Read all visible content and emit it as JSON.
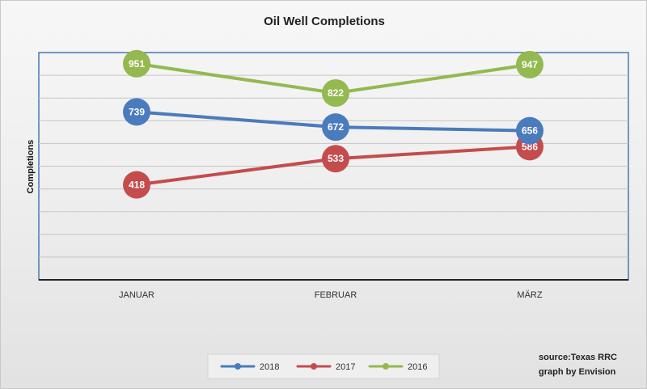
{
  "chart_data": {
    "type": "line",
    "title": "Oil Well Completions",
    "xlabel": "",
    "ylabel": "Completions",
    "categories": [
      "JANUAR",
      "FEBRUAR",
      "MÄRZ"
    ],
    "ylim": [
      0,
      1000
    ],
    "grid": true,
    "legend_position": "bottom",
    "series": [
      {
        "name": "2018",
        "color": "#4a7bbd",
        "values": [
          739,
          672,
          656
        ]
      },
      {
        "name": "2017",
        "color": "#c44c4c",
        "values": [
          418,
          533,
          586
        ]
      },
      {
        "name": "2016",
        "color": "#93b950",
        "values": [
          951,
          822,
          947
        ]
      }
    ],
    "annotations": [
      "source:Texas RRC",
      "graph by Envision"
    ]
  }
}
